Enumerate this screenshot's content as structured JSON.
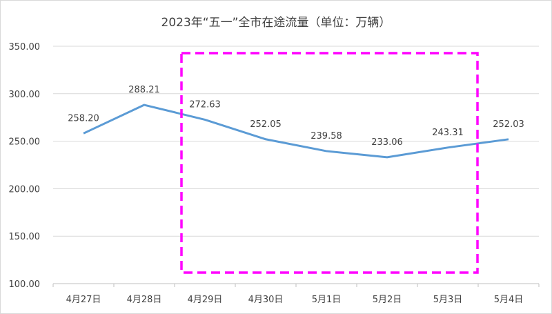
{
  "chart_data": {
    "type": "line",
    "title": "2023年“五一”全市在途流量（单位：万辆）",
    "categories": [
      "4月27日",
      "4月28日",
      "4月29日",
      "4月30日",
      "5月1日",
      "5月2日",
      "5月3日",
      "5月4日"
    ],
    "series": [
      {
        "name": "在途流量",
        "values": [
          258.2,
          288.21,
          272.63,
          252.05,
          239.58,
          233.06,
          243.31,
          252.03
        ],
        "color": "#5b9bd5"
      }
    ],
    "data_labels": [
      "258.20",
      "288.21",
      "272.63",
      "252.05",
      "239.58",
      "233.06",
      "243.31",
      "252.03"
    ],
    "ylim": [
      100,
      350
    ],
    "yticks": [
      "100.00",
      "150.00",
      "200.00",
      "250.00",
      "300.00",
      "350.00"
    ],
    "xlabel": "",
    "ylabel": "",
    "grid": true,
    "annotation": {
      "type": "dashed-rectangle",
      "color": "#ff00ff",
      "spans_categories": [
        "4月29日",
        "5月3日"
      ]
    }
  }
}
